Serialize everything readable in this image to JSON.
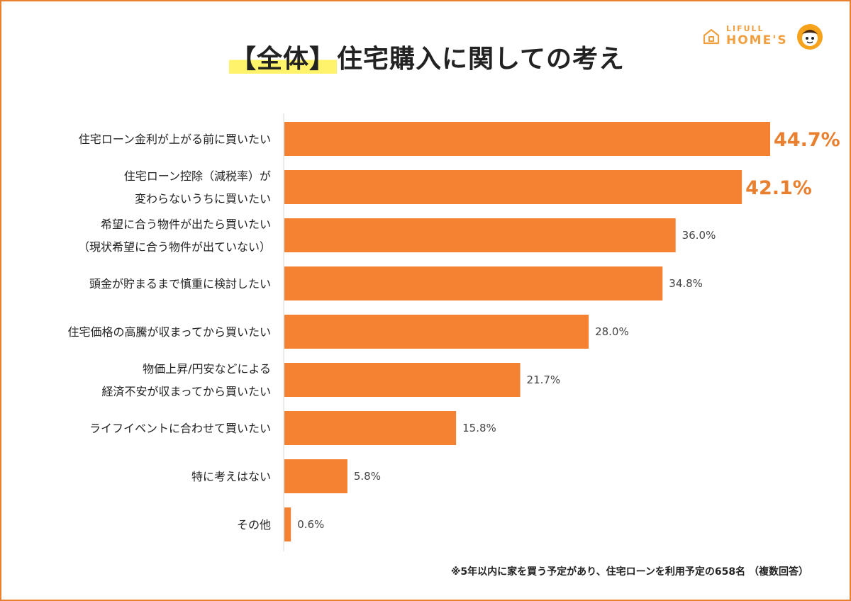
{
  "page": {
    "title_highlight": "【全体】",
    "title_rest": "住宅購入に関しての考え",
    "footnote": "※5年以内に家を買う予定があり、住宅ローンを利用予定の658名 （複数回答）"
  },
  "logo": {
    "top": "LIFULL",
    "main": "HOME'S"
  },
  "colors": {
    "bar": "#f58233",
    "accent": "#e9802f",
    "frame": "#e9802f",
    "highlight": "#fff36b"
  },
  "chart_data": {
    "type": "bar",
    "orientation": "horizontal",
    "title": "【全体】住宅購入に関しての考え",
    "unit": "%",
    "xlim": [
      0,
      44.7
    ],
    "grid": false,
    "categories": [
      [
        "住宅ローン金利が上がる前に買いたい"
      ],
      [
        "住宅ローン控除（減税率）が",
        "変わらないうちに買いたい"
      ],
      [
        "希望に合う物件が出たら買いたい",
        "（現状希望に合う物件が出ていない）"
      ],
      [
        "頭金が貯まるまで慎重に検討したい"
      ],
      [
        "住宅価格の高騰が収まってから買いたい"
      ],
      [
        "物価上昇/円安などによる",
        "経済不安が収まってから買いたい"
      ],
      [
        "ライフイベントに合わせて買いたい"
      ],
      [
        "特に考えはない"
      ],
      [
        "その他"
      ]
    ],
    "values": [
      44.7,
      42.1,
      36.0,
      34.8,
      28.0,
      21.7,
      15.8,
      5.8,
      0.6
    ],
    "value_labels": [
      "44.7%",
      "42.1%",
      "36.0%",
      "34.8%",
      "28.0%",
      "21.7%",
      "15.8%",
      "5.8%",
      "0.6%"
    ],
    "emphasized": [
      true,
      true,
      false,
      false,
      false,
      false,
      false,
      false,
      false
    ]
  }
}
